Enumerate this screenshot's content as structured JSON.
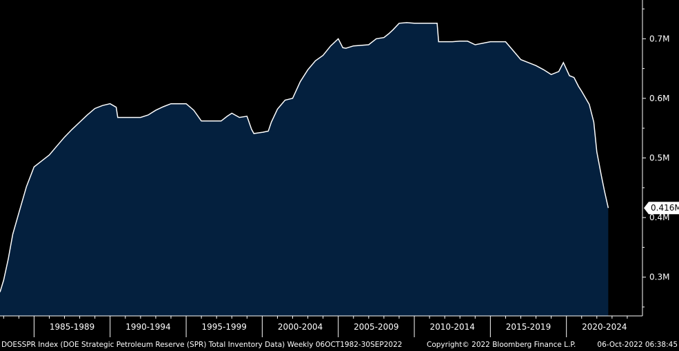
{
  "chart_data": {
    "type": "area",
    "series": [
      {
        "x": [
          1982.76,
          1983.0,
          1983.3,
          1983.6,
          1984.0,
          1984.5,
          1985.0,
          1985.5,
          1986.0,
          1986.5,
          1987.0,
          1987.5,
          1988.0,
          1988.5,
          1989.0,
          1989.5,
          1990.0,
          1990.4,
          1990.5,
          1991.0,
          1992.0,
          1992.5,
          1993.0,
          1993.5,
          1994.0,
          1994.5,
          1995.0,
          1995.5,
          1996.0,
          1997.0,
          1997.3,
          1997.7,
          1998.0,
          1998.5,
          1999.0,
          1999.3,
          1999.45,
          2000.0,
          2000.4,
          2000.6,
          2001.0,
          2001.5,
          2002.0,
          2002.5,
          2003.0,
          2003.5,
          2004.0,
          2004.5,
          2005.0,
          2005.3,
          2005.5,
          2006.0,
          2007.0,
          2007.5,
          2008.0,
          2008.3,
          2008.6,
          2009.0,
          2009.5,
          2010.0,
          2010.8,
          2011.5,
          2011.6,
          2012.5,
          2013.0,
          2013.5,
          2014.0,
          2015.0,
          2016.0,
          2016.5,
          2017.0,
          2017.5,
          2018.0,
          2018.5,
          2019.0,
          2019.5,
          2019.8,
          2020.2,
          2020.5,
          2020.8,
          2021.0,
          2021.5,
          2021.8,
          2022.0,
          2022.3,
          2022.5,
          2022.75
        ],
        "y": [
          275,
          295,
          330,
          372,
          408,
          452,
          485,
          495,
          505,
          520,
          535,
          548,
          560,
          572,
          583,
          588,
          591,
          585,
          568,
          568,
          568,
          572,
          580,
          586,
          591,
          591,
          591,
          580,
          562,
          562,
          562,
          570,
          575,
          568,
          570,
          548,
          541,
          543,
          545,
          560,
          582,
          597,
          600,
          628,
          648,
          663,
          672,
          688,
          700,
          685,
          684,
          688,
          690,
          700,
          702,
          708,
          715,
          726,
          727,
          726,
          726,
          726,
          695,
          695,
          696,
          696,
          690,
          695,
          695,
          680,
          665,
          660,
          655,
          648,
          640,
          645,
          660,
          638,
          635,
          620,
          612,
          590,
          560,
          510,
          470,
          445,
          416
        ]
      }
    ],
    "yticks": [
      "0.3M",
      "0.4M",
      "0.5M",
      "0.6M",
      "0.7M"
    ],
    "ytick_values": [
      300,
      400,
      500,
      600,
      700
    ],
    "ylim": [
      235,
      765
    ],
    "xlim": [
      1982.76,
      2025.0
    ],
    "xtick_labels": [
      "1985-1989",
      "1990-1994",
      "1995-1999",
      "2000-2004",
      "2005-2009",
      "2010-2014",
      "2015-2019",
      "2020-2024"
    ],
    "xtick_starts": [
      1985,
      1990,
      1995,
      2000,
      2005,
      2010,
      2015,
      2020
    ],
    "last_value_label": "0.416M",
    "colors": {
      "area_fill": "#04203e",
      "area_line": "#ffffff",
      "background": "#000000",
      "axis": "#ffffff",
      "badge_bg": "#ffffff",
      "badge_text": "#000000"
    }
  },
  "footer": {
    "description": "DOESSPR Index (DOE Strategic Petroleum Reserve (SPR) Total Inventory Data)  Weekly 06OCT1982-30SEP2022",
    "copyright": "Copyright© 2022 Bloomberg Finance L.P.",
    "timestamp": "06-Oct-2022 06:38:45"
  }
}
